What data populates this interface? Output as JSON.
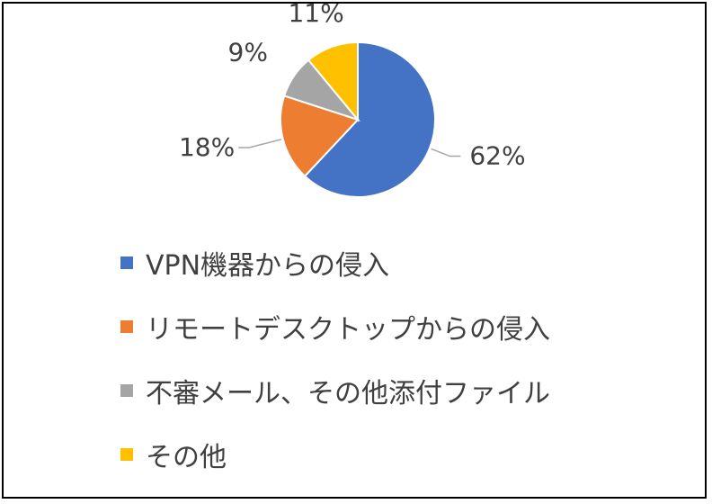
{
  "chart_data": {
    "type": "pie",
    "categories": [
      "VPN機器からの侵入",
      "リモートデスクトップからの侵入",
      "不審メール、その他添付ファイル",
      "その他"
    ],
    "values": [
      62,
      18,
      9,
      11
    ],
    "labels": [
      "62%",
      "18%",
      "9%",
      "11%"
    ],
    "colors": [
      "#4472C4",
      "#ED7D31",
      "#A5A5A5",
      "#FFC000"
    ],
    "legend_position": "bottom",
    "title": ""
  }
}
